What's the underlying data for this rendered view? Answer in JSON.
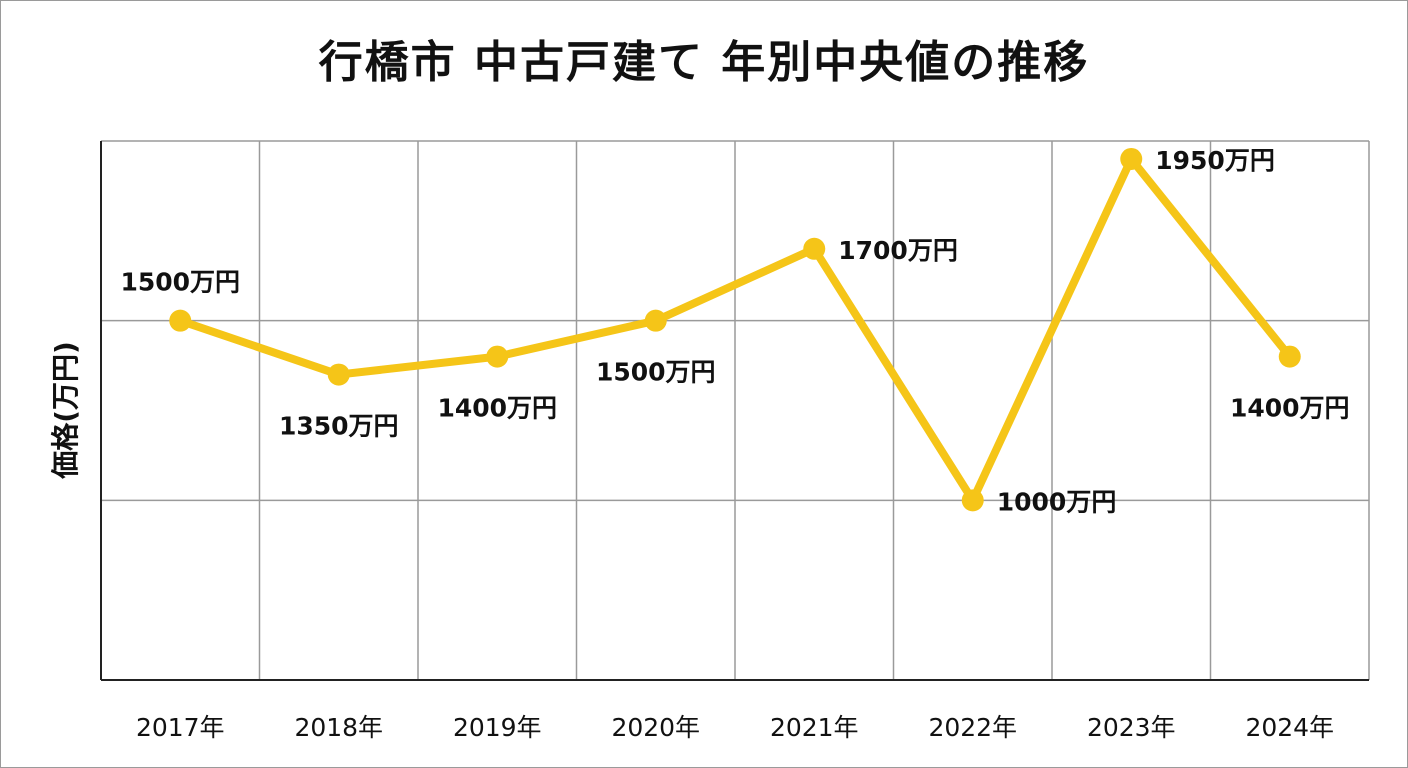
{
  "chart_data": {
    "type": "line",
    "title": "行橋市 中古戸建て 年別中央値の推移",
    "xlabel": "",
    "ylabel": "価格(万円)",
    "categories": [
      "2017年",
      "2018年",
      "2019年",
      "2020年",
      "2021年",
      "2022年",
      "2023年",
      "2024年"
    ],
    "values": [
      1500,
      1350,
      1400,
      1500,
      1700,
      1000,
      1950,
      1400
    ],
    "data_labels": [
      "1500万円",
      "1350万円",
      "1400万円",
      "1500万円",
      "1700万円",
      "1000万円",
      "1950万円",
      "1400万円"
    ],
    "label_positions": [
      "above",
      "below",
      "below",
      "below",
      "right",
      "right",
      "right",
      "below"
    ],
    "ylim": [
      500,
      2000
    ],
    "y_gridlines": [
      1000,
      1500
    ],
    "grid": true,
    "legend": "none",
    "line_color": "#F5C518"
  }
}
